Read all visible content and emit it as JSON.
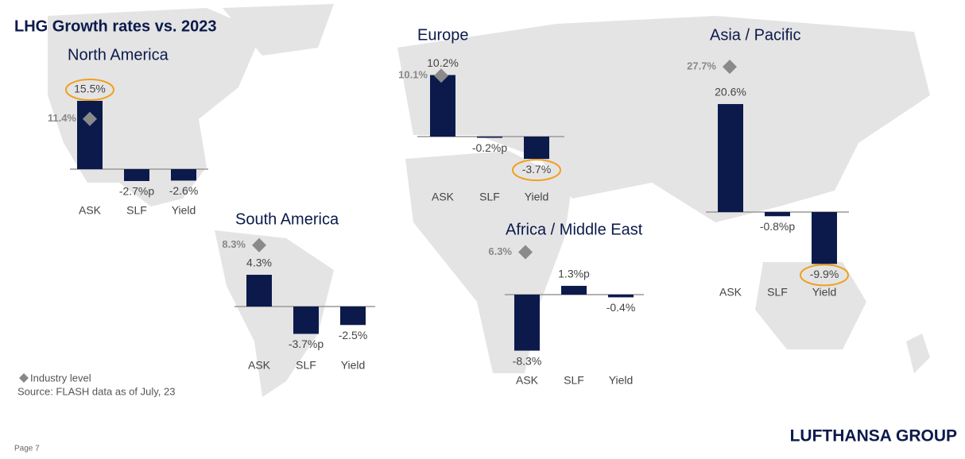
{
  "title": "LHG Growth rates vs. 2023",
  "legend": "Industry level",
  "source": "Source: FLASH data as of July, 23",
  "page": "Page 7",
  "logo": "LUFTHANSA GROUP",
  "chart_data": [
    {
      "type": "bar",
      "title": "North America",
      "categories": [
        "ASK",
        "SLF",
        "Yield"
      ],
      "values": [
        15.5,
        -2.7,
        -2.6
      ],
      "value_labels": [
        "15.5%",
        "-2.7%p",
        "-2.6%"
      ],
      "industry": 11.4,
      "industry_label": "11.4%",
      "color": "#0c1a4b",
      "highlight": 0
    },
    {
      "type": "bar",
      "title": "Europe",
      "categories": [
        "ASK",
        "SLF",
        "Yield"
      ],
      "values": [
        10.2,
        -0.2,
        -3.7
      ],
      "value_labels": [
        "10.2%",
        "-0.2%p",
        "-3.7%"
      ],
      "industry": 10.1,
      "industry_label": "10.1%",
      "color": "#0c1a4b",
      "highlight": 2
    },
    {
      "type": "bar",
      "title": "Asia / Pacific",
      "categories": [
        "ASK",
        "SLF",
        "Yield"
      ],
      "values": [
        20.6,
        -0.8,
        -9.9
      ],
      "value_labels": [
        "20.6%",
        "-0.8%p",
        "-9.9%"
      ],
      "industry": 27.7,
      "industry_label": "27.7%",
      "color": "#0c1a4b",
      "highlight": 2
    },
    {
      "type": "bar",
      "title": "South America",
      "categories": [
        "ASK",
        "SLF",
        "Yield"
      ],
      "values": [
        4.3,
        -3.7,
        -2.5
      ],
      "value_labels": [
        "4.3%",
        "-3.7%p",
        "-2.5%"
      ],
      "industry": 8.3,
      "industry_label": "8.3%",
      "color": "#0c1a4b"
    },
    {
      "type": "bar",
      "title": "Africa / Middle East",
      "categories": [
        "ASK",
        "SLF",
        "Yield"
      ],
      "values": [
        -8.3,
        1.3,
        -0.4
      ],
      "value_labels": [
        "-8.3%",
        "1.3%p",
        "-0.4%"
      ],
      "industry": 6.3,
      "industry_label": "6.3%",
      "color": "#0c1a4b"
    }
  ]
}
